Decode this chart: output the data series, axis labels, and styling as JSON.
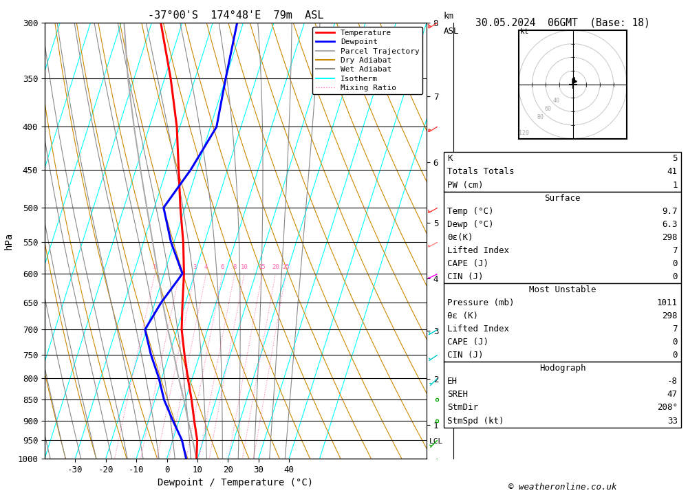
{
  "title_left": "-37°00'S  174°48'E  79m  ASL",
  "title_right": "30.05.2024  06GMT  (Base: 18)",
  "xlabel": "Dewpoint / Temperature (°C)",
  "ylabel_left": "hPa",
  "pressure_levels": [
    300,
    350,
    400,
    450,
    500,
    550,
    600,
    650,
    700,
    750,
    800,
    850,
    900,
    950,
    1000
  ],
  "temp_ticks": [
    -30,
    -20,
    -10,
    0,
    10,
    20,
    30,
    40
  ],
  "km_ticks": [
    1,
    2,
    3,
    4,
    5,
    6,
    7,
    8
  ],
  "km_pressures": [
    908,
    795,
    692,
    596,
    508,
    427,
    353,
    286
  ],
  "lcl_pressure": 952,
  "temp_profile_p": [
    1000,
    950,
    900,
    850,
    800,
    750,
    700,
    650,
    600,
    550,
    500,
    450,
    400,
    350,
    300
  ],
  "temp_profile_t": [
    9.7,
    8.0,
    5.0,
    2.0,
    -1.5,
    -5.0,
    -8.5,
    -11.0,
    -13.5,
    -17.0,
    -21.5,
    -26.0,
    -31.0,
    -38.0,
    -47.0
  ],
  "dewp_profile_p": [
    1000,
    950,
    900,
    850,
    800,
    750,
    700,
    650,
    600,
    550,
    500,
    450,
    400,
    350,
    300
  ],
  "dewp_profile_t": [
    6.3,
    3.0,
    -2.0,
    -7.0,
    -11.0,
    -16.0,
    -20.5,
    -18.0,
    -14.0,
    -21.0,
    -27.0,
    -22.0,
    -18.0,
    -20.0,
    -22.0
  ],
  "parcel_profile_p": [
    1000,
    950,
    900,
    850,
    800,
    750,
    700,
    650,
    600,
    550,
    500,
    450,
    400,
    350,
    300
  ],
  "parcel_profile_t": [
    9.7,
    6.5,
    3.0,
    -0.5,
    -4.5,
    -8.5,
    -13.0,
    -17.5,
    -22.0,
    -27.0,
    -32.5,
    -38.5,
    -45.0,
    -52.0,
    -59.0
  ],
  "mixing_ratios": [
    1,
    2,
    3,
    4,
    6,
    8,
    10,
    15,
    20,
    25
  ],
  "temp_color": "red",
  "dewp_color": "blue",
  "parcel_color": "#aaaaaa",
  "dry_adiabat_color": "#cc8800",
  "wet_adiabat_color": "#888888",
  "isotherm_color": "cyan",
  "mixing_ratio_color": "#ff69b4",
  "stats": {
    "K": 5,
    "TotalsTotals": 41,
    "PW_cm": 1,
    "surface_temp": 9.7,
    "surface_dewp": 6.3,
    "theta_e": 298,
    "lifted_index": 7,
    "CAPE": 0,
    "CIN": 0,
    "mu_pressure": 1011,
    "mu_theta_e": 298,
    "mu_li": 7,
    "mu_CAPE": 0,
    "mu_CIN": 0,
    "EH": -8,
    "SREH": 47,
    "StmDir": 208,
    "StmSpd": 33
  },
  "copyright": "© weatheronline.co.uk",
  "wind_p": [
    300,
    400,
    500,
    550,
    600,
    700,
    750,
    800,
    850,
    900,
    950,
    1000
  ],
  "wind_u": [
    25,
    20,
    18,
    15,
    10,
    5,
    3,
    2,
    1,
    1,
    2,
    3
  ],
  "wind_v": [
    15,
    12,
    10,
    8,
    5,
    3,
    2,
    2,
    1,
    1,
    2,
    3
  ],
  "wind_colors": [
    "#ff4444",
    "#ff4444",
    "#ff4444",
    "#ff8888",
    "#ff00ff",
    "#00cccc",
    "#00cccc",
    "#00cccc",
    "#00aa00",
    "#00aa00",
    "#00aa00",
    "#00aa00"
  ]
}
